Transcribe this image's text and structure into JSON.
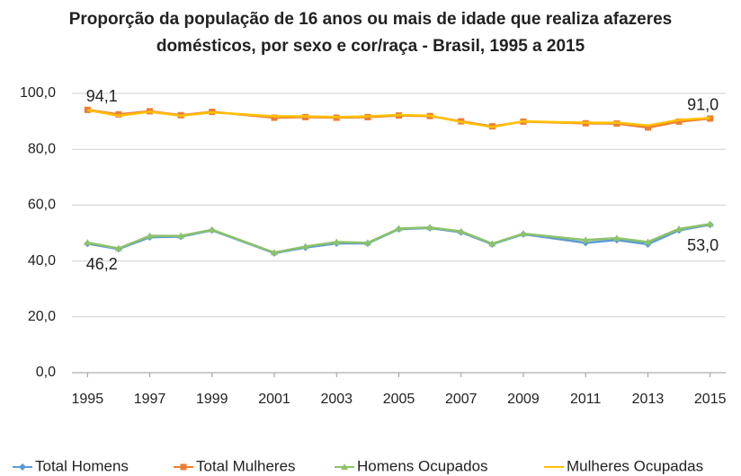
{
  "chart_data": {
    "type": "line",
    "title": [
      "Proporção da população de 16 anos ou mais de idade que realiza afazeres",
      "domésticos, por sexo e cor/raça - Brasil, 1995 a 2015"
    ],
    "x": [
      1995,
      1996,
      1997,
      1998,
      1999,
      2001,
      2002,
      2003,
      2004,
      2005,
      2006,
      2007,
      2008,
      2009,
      2011,
      2012,
      2013,
      2014,
      2015
    ],
    "series": [
      {
        "name": "Total Homens",
        "color": "#5b9bd5",
        "marker": "diamond",
        "values": [
          46.2,
          44.3,
          48.5,
          48.7,
          51.0,
          42.8,
          44.8,
          46.3,
          46.3,
          51.4,
          51.8,
          50.3,
          46.0,
          49.6,
          46.5,
          47.5,
          46.0,
          51.0,
          53.0
        ],
        "value_labels": [
          "46,2",
          null,
          null,
          null,
          null,
          null,
          null,
          null,
          null,
          null,
          null,
          null,
          null,
          null,
          null,
          null,
          null,
          null,
          "53,0"
        ]
      },
      {
        "name": "Total Mulheres",
        "color": "#ed7d31",
        "marker": "square",
        "values": [
          94.1,
          92.5,
          93.6,
          92.2,
          93.4,
          91.3,
          91.5,
          91.3,
          91.5,
          92.1,
          91.9,
          90.0,
          88.2,
          89.9,
          89.3,
          89.2,
          87.8,
          89.9,
          91.0
        ],
        "value_labels": [
          "94,1",
          null,
          null,
          null,
          null,
          null,
          null,
          null,
          null,
          null,
          null,
          null,
          null,
          null,
          null,
          null,
          null,
          null,
          "91,0"
        ]
      },
      {
        "name": "Homens Ocupados",
        "color": "#8cc26a",
        "marker": "triangle",
        "values": [
          46.6,
          44.5,
          49.0,
          49.0,
          51.2,
          43.0,
          45.2,
          46.8,
          46.5,
          51.6,
          52.0,
          50.6,
          46.2,
          49.8,
          47.5,
          48.2,
          46.8,
          51.5,
          53.2
        ]
      },
      {
        "name": "Mulheres Ocupadas",
        "color": "#ffc000",
        "marker": "none",
        "values": [
          94.0,
          92.0,
          93.4,
          92.0,
          93.2,
          91.8,
          91.8,
          91.5,
          91.8,
          92.3,
          92.0,
          89.8,
          88.0,
          90.0,
          89.5,
          89.5,
          88.5,
          90.5,
          91.2
        ]
      }
    ],
    "xlim": [
      1994.5,
      2015.5
    ],
    "xticks": [
      1995,
      1997,
      1999,
      2001,
      2003,
      2005,
      2007,
      2009,
      2011,
      2013,
      2015
    ],
    "ylim": [
      0,
      100
    ],
    "yticks": [
      {
        "value": 0,
        "label": "0,0"
      },
      {
        "value": 20,
        "label": "20,0"
      },
      {
        "value": 40,
        "label": "40,0"
      },
      {
        "value": 60,
        "label": "60,0"
      },
      {
        "value": 80,
        "label": "80,0"
      },
      {
        "value": 100,
        "label": "100,0"
      }
    ],
    "grid": true,
    "legend": "bottom"
  }
}
